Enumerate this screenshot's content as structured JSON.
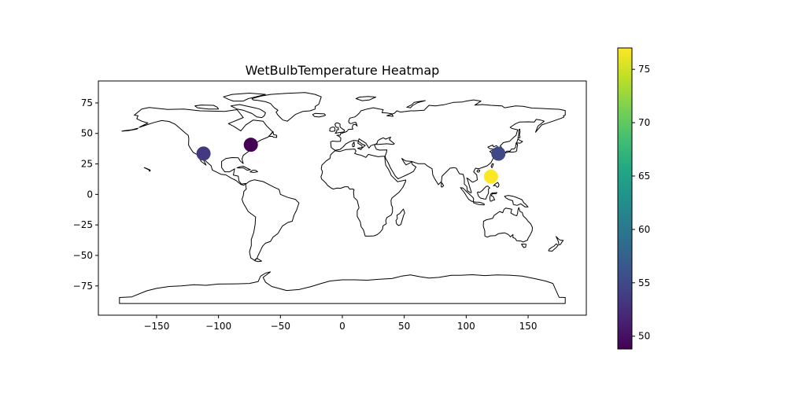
{
  "chart_data": {
    "type": "scatter",
    "title": "WetBulbTemperature Heatmap",
    "xlabel": "",
    "ylabel": "",
    "xlim": [
      -197,
      197
    ],
    "ylim": [
      -99,
      93
    ],
    "x_ticks": [
      -150,
      -100,
      -50,
      0,
      50,
      100,
      150
    ],
    "x_tick_labels": [
      "−150",
      "−100",
      "−50",
      "0",
      "50",
      "100",
      "150"
    ],
    "y_ticks": [
      -75,
      -50,
      -25,
      0,
      25,
      50,
      75
    ],
    "y_tick_labels": [
      "−75",
      "−50",
      "−25",
      "0",
      "25",
      "50",
      "75"
    ],
    "grid": false,
    "basemap": "world-coastlines",
    "points": [
      {
        "lon": -112.1,
        "lat": 33.5,
        "value": 53.5
      },
      {
        "lon": -73.9,
        "lat": 40.7,
        "value": 48.8
      },
      {
        "lon": 126.0,
        "lat": 33.4,
        "value": 55.0
      },
      {
        "lon": 120.0,
        "lat": 14.6,
        "value": 77.0
      }
    ],
    "colorbar": {
      "colormap": "viridis",
      "range": [
        48.8,
        77.0
      ],
      "ticks": [
        50,
        55,
        60,
        65,
        70,
        75
      ],
      "tick_labels": [
        "50",
        "55",
        "60",
        "65",
        "70",
        "75"
      ],
      "position": "right"
    }
  }
}
